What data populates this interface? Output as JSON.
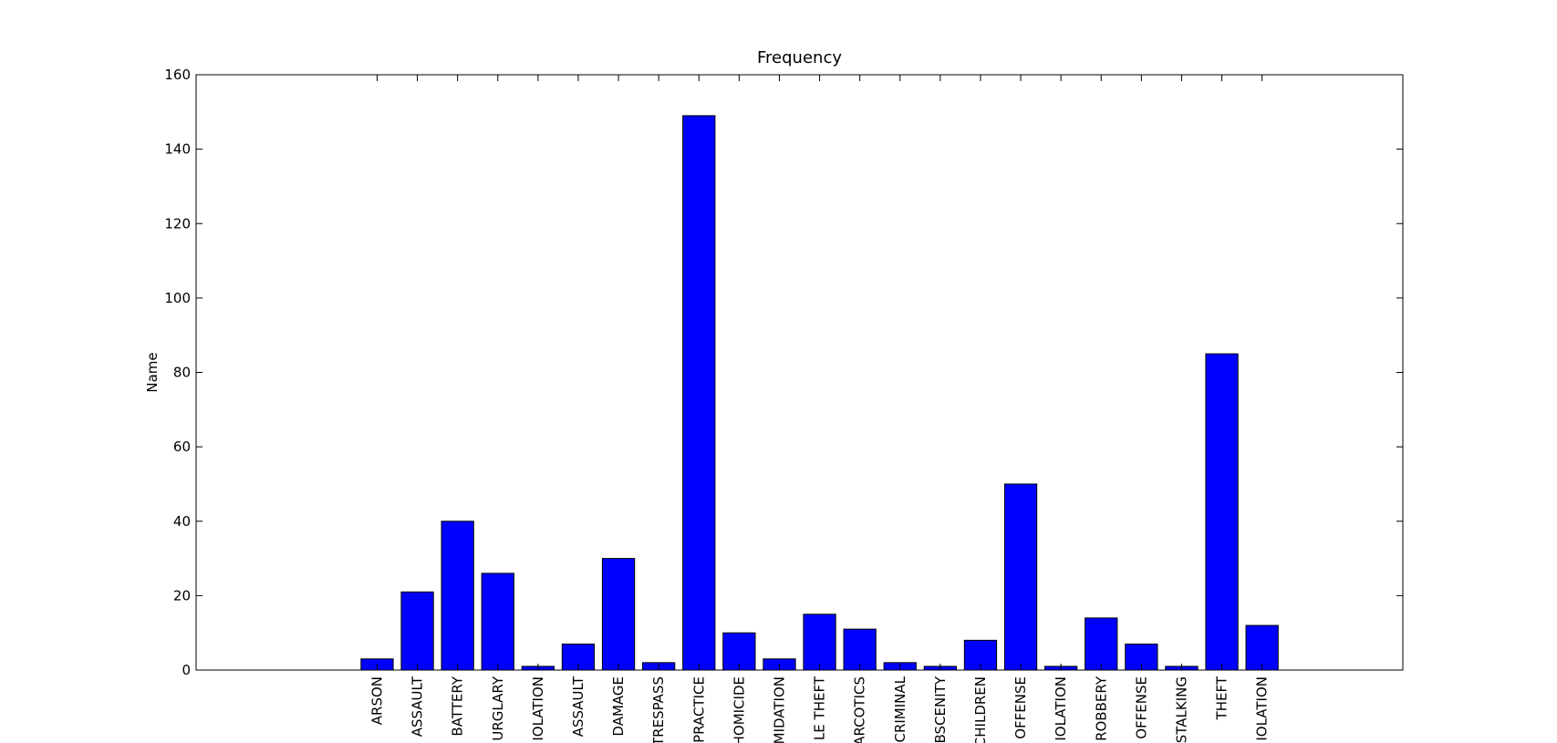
{
  "chart_data": {
    "type": "bar",
    "title": "Frequency",
    "xlabel": "",
    "ylabel": "Name",
    "ylim": [
      0,
      160
    ],
    "yticks": [
      0,
      20,
      40,
      60,
      80,
      100,
      120,
      140,
      160
    ],
    "xlim": [
      -4.5,
      25.5
    ],
    "grid": false,
    "bar_color": "#0000ff",
    "categories": [
      "ARSON",
      "ASSAULT",
      "BATTERY",
      "URGLARY",
      "IOLATION",
      "ASSAULT",
      "DAMAGE",
      "TRESPASS",
      "PRACTICE",
      "HOMICIDE",
      "MIDATION",
      "LE THEFT",
      "ARCOTICS",
      "CRIMINAL",
      "BSCENITY",
      "CHILDREN",
      "OFFENSE",
      "IOLATION",
      "ROBBERY",
      "OFFENSE",
      "STALKING",
      "THEFT",
      "IOLATION"
    ],
    "values": [
      3,
      21,
      40,
      26,
      1,
      7,
      30,
      2,
      149,
      10,
      3,
      15,
      11,
      2,
      1,
      8,
      50,
      1,
      14,
      7,
      1,
      85,
      12
    ]
  }
}
